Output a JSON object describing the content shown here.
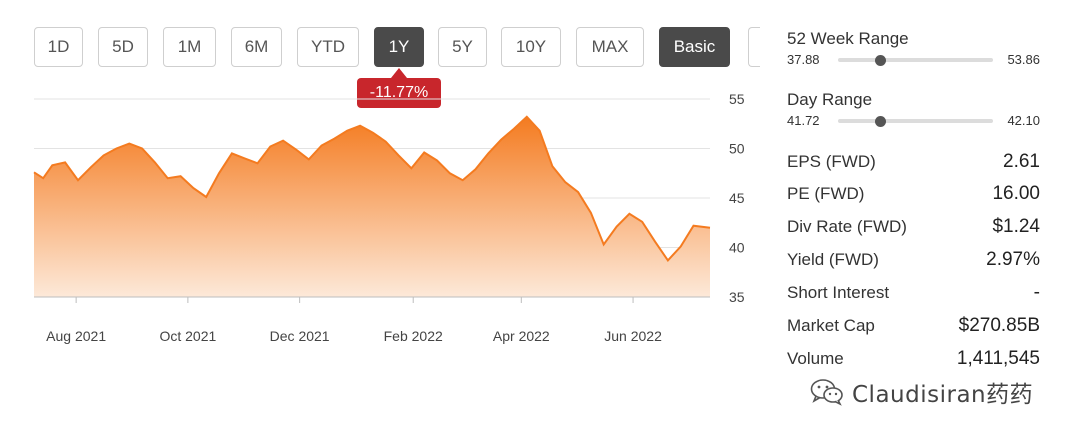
{
  "toolbar": {
    "ranges": [
      "1D",
      "5D",
      "1M",
      "6M",
      "YTD",
      "1Y",
      "5Y",
      "10Y",
      "MAX"
    ],
    "active_range": "1Y",
    "mode_label": "Basic"
  },
  "change_badge": "-11.77%",
  "chart_data": {
    "type": "area",
    "y_ticks": [
      "55",
      "50",
      "45",
      "40",
      "35"
    ],
    "ylim": [
      35,
      55
    ],
    "x_ticks": [
      "Aug 2021",
      "Oct 2021",
      "Dec 2021",
      "Feb 2022",
      "Apr 2022",
      "Jun 2022"
    ],
    "xlim": [
      "2021-07-09",
      "2022-07-13"
    ],
    "grid": true,
    "series": [
      {
        "x": [
          "2021-07-09",
          "2021-07-14",
          "2021-07-19",
          "2021-07-26",
          "2021-08-02",
          "2021-08-09",
          "2021-08-16",
          "2021-08-23",
          "2021-08-30",
          "2021-09-06",
          "2021-09-13",
          "2021-09-20",
          "2021-09-27",
          "2021-10-04",
          "2021-10-11",
          "2021-10-18",
          "2021-10-25",
          "2021-11-01",
          "2021-11-08",
          "2021-11-15",
          "2021-11-22",
          "2021-11-29",
          "2021-12-06",
          "2021-12-13",
          "2021-12-20",
          "2021-12-27",
          "2022-01-03",
          "2022-01-10",
          "2022-01-17",
          "2022-01-24",
          "2022-01-31",
          "2022-02-07",
          "2022-02-14",
          "2022-02-21",
          "2022-02-28",
          "2022-03-07",
          "2022-03-14",
          "2022-03-21",
          "2022-03-28",
          "2022-04-04",
          "2022-04-11",
          "2022-04-18",
          "2022-04-25",
          "2022-05-02",
          "2022-05-09",
          "2022-05-16",
          "2022-05-23",
          "2022-05-30",
          "2022-06-06",
          "2022-06-13",
          "2022-06-20",
          "2022-06-27",
          "2022-07-04",
          "2022-07-13"
        ],
        "values": [
          47.6,
          47.0,
          48.3,
          48.6,
          46.8,
          48.1,
          49.3,
          50.0,
          50.5,
          50.0,
          48.6,
          47.0,
          47.2,
          46.0,
          45.1,
          47.5,
          49.5,
          49.0,
          48.5,
          50.2,
          50.8,
          49.9,
          48.9,
          50.3,
          51.0,
          51.8,
          52.3,
          51.6,
          50.7,
          49.3,
          48.0,
          49.6,
          48.8,
          47.5,
          46.8,
          47.9,
          49.5,
          50.9,
          52.0,
          53.2,
          51.8,
          48.2,
          46.6,
          45.6,
          43.5,
          40.3,
          42.1,
          43.4,
          42.6,
          40.6,
          38.7,
          40.1,
          42.2,
          42.0
        ]
      }
    ]
  },
  "stats": {
    "week52": {
      "label": "52 Week Range",
      "low": "37.88",
      "high": "53.86",
      "position": 0.27
    },
    "day": {
      "label": "Day Range",
      "low": "41.72",
      "high": "42.10",
      "position": 0.27
    },
    "rows": [
      {
        "label": "EPS (FWD)",
        "value": "2.61"
      },
      {
        "label": "PE (FWD)",
        "value": "16.00"
      },
      {
        "label": "Div Rate (FWD)",
        "value": "$1.24"
      },
      {
        "label": "Yield (FWD)",
        "value": "2.97%"
      },
      {
        "label": "Short Interest",
        "value": "-"
      },
      {
        "label": "Market Cap",
        "value": "$270.85B"
      },
      {
        "label": "Volume",
        "value": "1,411,545"
      }
    ]
  },
  "watermark": {
    "text": "Claudisiran药药",
    "icon": "wechat-icon"
  },
  "colors": {
    "line": "#f47b20",
    "area_top": "#f47b20",
    "area_bottom": "#fde9d9",
    "badge": "#c8262c",
    "volume": "#cfcfcf"
  }
}
